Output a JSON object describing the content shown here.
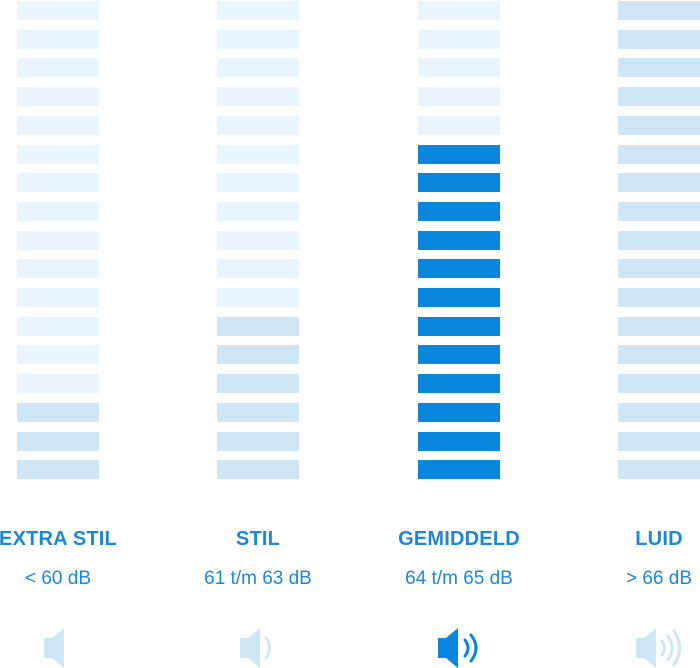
{
  "chart_data": {
    "type": "bar",
    "total_segments": 17,
    "categories": [
      {
        "name": "EXTRA STIL",
        "range": "< 60 dB",
        "level_segments": 3,
        "icon": "speaker-muted-icon",
        "active": false,
        "label_color": "#1d87d4",
        "filled_color": "#cfe6f7",
        "empty_color": "#eaf4fc",
        "icon_color": "#cfe6f7"
      },
      {
        "name": "STIL",
        "range": "61 t/m 63 dB",
        "level_segments": 6,
        "icon": "speaker-one-wave-icon",
        "active": false,
        "label_color": "#1d87d4",
        "filled_color": "#cfe6f7",
        "empty_color": "#eaf4fc",
        "icon_color": "#cfe6f7"
      },
      {
        "name": "GEMIDDELD",
        "range": "64 t/m 65 dB",
        "level_segments": 12,
        "icon": "speaker-two-waves-icon",
        "active": true,
        "label_color": "#1d87d4",
        "filled_color": "#0a86dc",
        "empty_color": "#eaf4fc",
        "icon_color": "#0a86dc"
      },
      {
        "name": "LUID",
        "range": "> 66 dB",
        "level_segments": 17,
        "icon": "speaker-three-waves-icon",
        "active": false,
        "label_color": "#1d87d4",
        "filled_color": "#cfe6f7",
        "empty_color": "#eaf4fc",
        "icon_color": "#cfe6f7"
      }
    ]
  }
}
